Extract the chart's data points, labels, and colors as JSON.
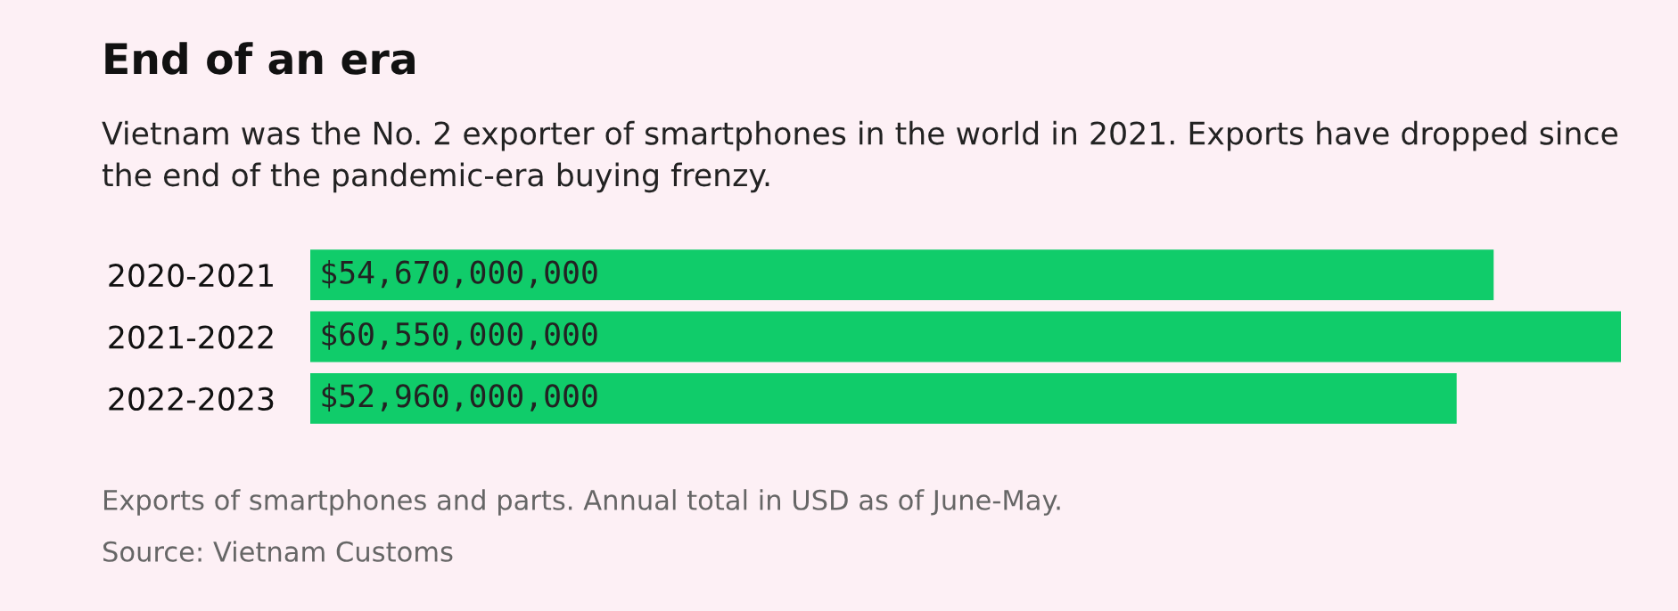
{
  "chart_data": {
    "type": "bar",
    "orientation": "horizontal",
    "title": "End of an era",
    "subtitle": "Vietnam was the No. 2 exporter of smartphones in the world in 2021. Exports have dropped since the end of the pandemic-era buying frenzy.",
    "categories": [
      "2020-2021",
      "2021-2022",
      "2022-2023"
    ],
    "values": [
      54670000000,
      60550000000,
      52960000000
    ],
    "value_labels": [
      "$54,670,000,000",
      "$60,550,000,000",
      "$52,960,000,000"
    ],
    "color": "#10cc6a",
    "annotations": [
      "Exports of smartphones and parts. Annual total in USD as of June-May.",
      "Source: Vietnam Customs"
    ]
  }
}
